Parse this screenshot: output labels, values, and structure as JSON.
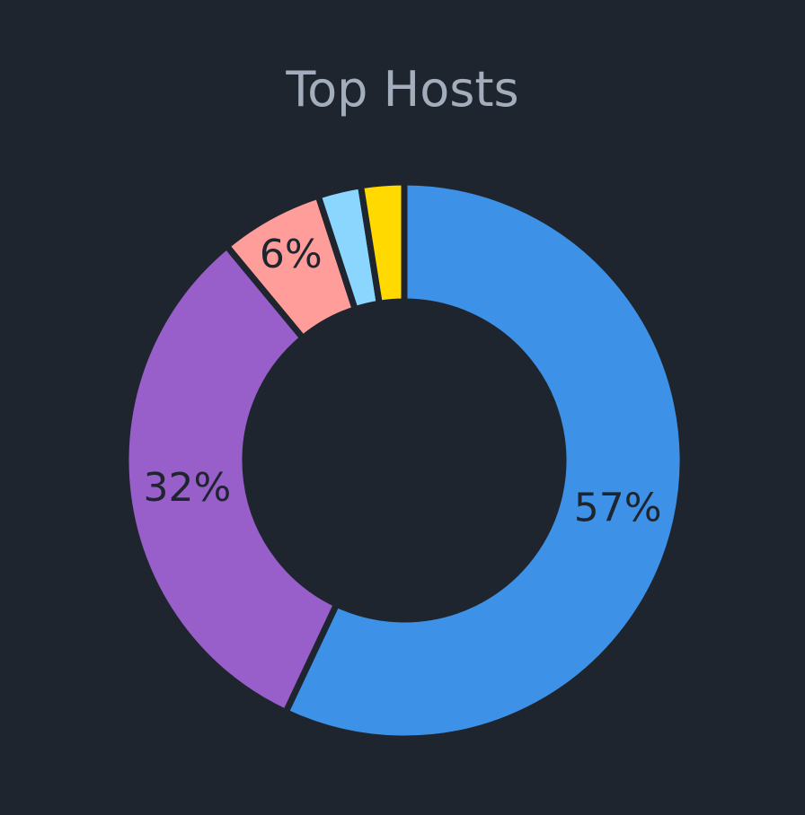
{
  "panel": {
    "title": "Top Hosts"
  },
  "chart_data": {
    "type": "pie",
    "variant": "donut",
    "title": "Top Hosts",
    "slices": [
      {
        "value": 57,
        "label": "57%",
        "color": "#3d92e8"
      },
      {
        "value": 32,
        "label": "32%",
        "color": "#985ec9"
      },
      {
        "value": 6,
        "label": "6%",
        "color": "#ff9d9a"
      },
      {
        "value": 2.5,
        "label": "",
        "color": "#8ad6ff"
      },
      {
        "value": 2.5,
        "label": "",
        "color": "#ffd900"
      }
    ],
    "legend": "none",
    "background": "#1e252e"
  }
}
